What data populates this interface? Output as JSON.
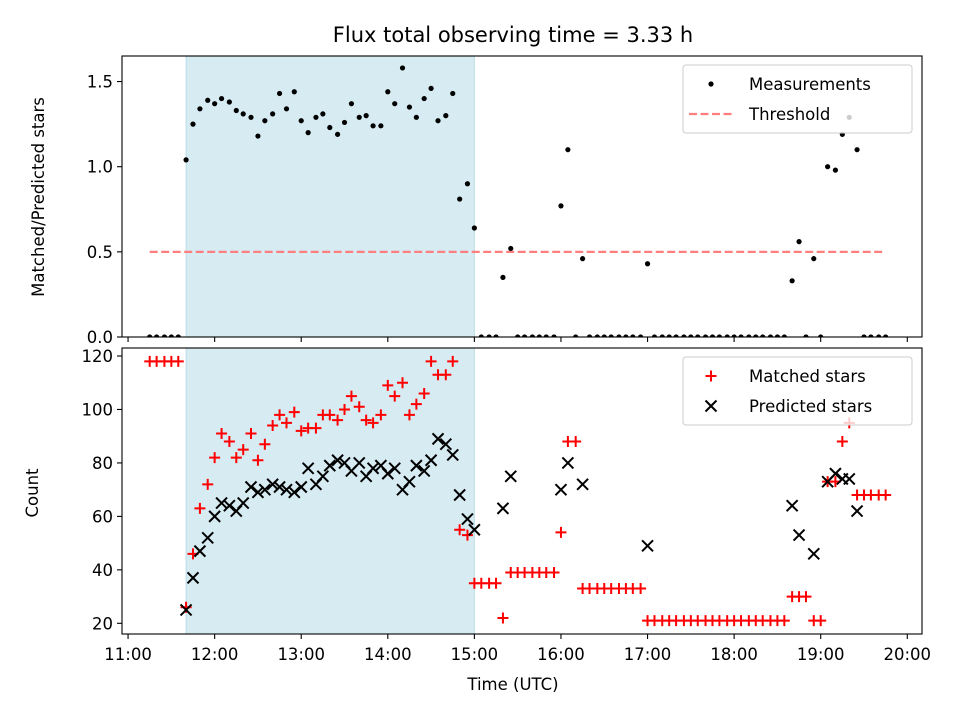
{
  "title": "Flux total observing time = 3.33 h",
  "colors": {
    "highlight": "#add8e6",
    "threshold": "#ff7f7f",
    "measurements": "#000000",
    "matched": "#ff0000",
    "predicted": "#000000"
  },
  "chart_data": [
    {
      "type": "scatter",
      "ylabel": "Matched/Predicted stars",
      "ylim": [
        0,
        1.65
      ],
      "yticks": [
        0.0,
        0.5,
        1.0,
        1.5
      ],
      "ytick_labels": [
        "0.0",
        "0.5",
        "1.0",
        "1.5"
      ],
      "xlim": [
        10.93,
        20.17
      ],
      "highlight_span": [
        11.67,
        15.0
      ],
      "legend": {
        "placement": "top-right",
        "entries": [
          "Measurements",
          "Threshold"
        ]
      },
      "threshold": {
        "name": "Threshold",
        "value": 0.5,
        "x_range": [
          11.25,
          19.75
        ]
      },
      "series": [
        {
          "name": "Measurements",
          "x": [
            11.25,
            11.33,
            11.42,
            11.5,
            11.58,
            11.67,
            11.75,
            11.83,
            11.92,
            12.0,
            12.08,
            12.17,
            12.25,
            12.33,
            12.42,
            12.5,
            12.58,
            12.67,
            12.75,
            12.83,
            12.92,
            13.0,
            13.08,
            13.17,
            13.25,
            13.33,
            13.42,
            13.5,
            13.58,
            13.67,
            13.75,
            13.83,
            13.92,
            14.0,
            14.08,
            14.17,
            14.25,
            14.33,
            14.42,
            14.5,
            14.58,
            14.67,
            14.75,
            14.83,
            14.92,
            15.0,
            15.08,
            15.17,
            15.25,
            15.33,
            15.42,
            15.5,
            15.58,
            15.67,
            15.75,
            15.83,
            15.92,
            16.0,
            16.08,
            16.17,
            16.25,
            16.33,
            16.42,
            16.5,
            16.58,
            16.67,
            16.75,
            16.83,
            16.92,
            17.0,
            17.08,
            17.17,
            17.25,
            17.33,
            17.42,
            17.5,
            17.58,
            17.67,
            17.75,
            17.83,
            17.92,
            18.0,
            18.08,
            18.17,
            18.25,
            18.33,
            18.42,
            18.5,
            18.58,
            18.67,
            18.75,
            18.83,
            18.92,
            19.0,
            19.08,
            19.17,
            19.25,
            19.33,
            19.42,
            19.5,
            19.58,
            19.67,
            19.75
          ],
          "y": [
            0,
            0,
            0,
            0,
            0,
            1.04,
            1.25,
            1.34,
            1.39,
            1.37,
            1.4,
            1.38,
            1.33,
            1.31,
            1.29,
            1.18,
            1.27,
            1.31,
            1.43,
            1.34,
            1.44,
            1.27,
            1.2,
            1.29,
            1.31,
            1.23,
            1.19,
            1.26,
            1.37,
            1.29,
            1.3,
            1.24,
            1.24,
            1.44,
            1.37,
            1.58,
            1.35,
            1.29,
            1.4,
            1.46,
            1.27,
            1.3,
            1.43,
            0.81,
            0.9,
            0.64,
            0,
            0,
            0,
            0.35,
            0.52,
            0,
            0,
            0,
            0,
            0,
            0,
            0.77,
            1.1,
            0,
            0.46,
            0,
            0,
            0,
            0,
            0,
            0,
            0,
            0,
            0.43,
            0,
            0,
            0,
            0,
            0,
            0,
            0,
            0,
            0,
            0,
            0,
            0,
            0,
            0,
            0,
            0,
            0,
            0,
            0,
            0.33,
            0.56,
            0,
            0.46,
            0,
            1.0,
            0.98,
            1.19,
            1.29,
            1.1,
            0,
            0,
            0,
            0
          ]
        }
      ]
    },
    {
      "type": "scatter",
      "xlabel": "Time (UTC)",
      "ylabel": "Count",
      "ylim": [
        16,
        123
      ],
      "yticks": [
        20,
        40,
        60,
        80,
        100,
        120
      ],
      "ytick_labels": [
        "20",
        "40",
        "60",
        "80",
        "100",
        "120"
      ],
      "xlim": [
        10.93,
        20.17
      ],
      "xticks": [
        11,
        12,
        13,
        14,
        15,
        16,
        17,
        18,
        19,
        20
      ],
      "xtick_labels": [
        "11:00",
        "12:00",
        "13:00",
        "14:00",
        "15:00",
        "16:00",
        "17:00",
        "18:00",
        "19:00",
        "20:00"
      ],
      "highlight_span": [
        11.67,
        15.0
      ],
      "legend": {
        "placement": "top-right",
        "entries": [
          "Matched stars",
          "Predicted stars"
        ]
      },
      "series": [
        {
          "name": "Matched stars",
          "marker": "plus",
          "x": [
            11.25,
            11.33,
            11.42,
            11.5,
            11.58,
            11.67,
            11.75,
            11.83,
            11.92,
            12.0,
            12.08,
            12.17,
            12.25,
            12.33,
            12.42,
            12.5,
            12.58,
            12.67,
            12.75,
            12.83,
            12.92,
            13.0,
            13.08,
            13.17,
            13.25,
            13.33,
            13.42,
            13.5,
            13.58,
            13.67,
            13.75,
            13.83,
            13.92,
            14.0,
            14.08,
            14.17,
            14.25,
            14.33,
            14.42,
            14.5,
            14.58,
            14.67,
            14.75,
            14.83,
            14.92,
            15.0,
            15.08,
            15.17,
            15.25,
            15.33,
            15.42,
            15.5,
            15.58,
            15.67,
            15.75,
            15.83,
            15.92,
            16.0,
            16.08,
            16.17,
            16.25,
            16.33,
            16.42,
            16.5,
            16.58,
            16.67,
            16.75,
            16.83,
            16.92,
            17.0,
            17.08,
            17.17,
            17.25,
            17.33,
            17.42,
            17.5,
            17.58,
            17.67,
            17.75,
            17.83,
            17.92,
            18.0,
            18.08,
            18.17,
            18.25,
            18.33,
            18.42,
            18.5,
            18.58,
            18.67,
            18.75,
            18.83,
            18.92,
            19.0,
            19.08,
            19.17,
            19.25,
            19.33,
            19.42,
            19.5,
            19.58,
            19.67,
            19.75
          ],
          "y": [
            118,
            118,
            118,
            118,
            118,
            26,
            46,
            63,
            72,
            82,
            91,
            88,
            82,
            85,
            91,
            81,
            87,
            94,
            98,
            95,
            99,
            92,
            93,
            93,
            98,
            98,
            96,
            100,
            105,
            101,
            96,
            95,
            98,
            109,
            105,
            110,
            98,
            102,
            106,
            118,
            113,
            113,
            118,
            55,
            53,
            35,
            35,
            35,
            35,
            22,
            39,
            39,
            39,
            39,
            39,
            39,
            39,
            54,
            88,
            88,
            33,
            33,
            33,
            33,
            33,
            33,
            33,
            33,
            33,
            21,
            21,
            21,
            21,
            21,
            21,
            21,
            21,
            21,
            21,
            21,
            21,
            21,
            21,
            21,
            21,
            21,
            21,
            21,
            21,
            30,
            30,
            30,
            21,
            21,
            73,
            73,
            88,
            95,
            68,
            68,
            68,
            68,
            68
          ]
        },
        {
          "name": "Predicted stars",
          "marker": "x",
          "x": [
            11.67,
            11.75,
            11.83,
            11.92,
            12.0,
            12.08,
            12.17,
            12.25,
            12.33,
            12.42,
            12.5,
            12.58,
            12.67,
            12.75,
            12.83,
            12.92,
            13.0,
            13.08,
            13.17,
            13.25,
            13.33,
            13.42,
            13.5,
            13.58,
            13.67,
            13.75,
            13.83,
            13.92,
            14.0,
            14.08,
            14.17,
            14.25,
            14.33,
            14.42,
            14.5,
            14.58,
            14.67,
            14.75,
            14.83,
            14.92,
            15.0,
            15.33,
            15.42,
            16.0,
            16.08,
            16.25,
            17.0,
            18.67,
            18.75,
            18.92,
            19.08,
            19.17,
            19.25,
            19.33,
            19.42
          ],
          "y": [
            25,
            37,
            47,
            52,
            60,
            65,
            64,
            62,
            65,
            71,
            69,
            70,
            72,
            71,
            70,
            69,
            71,
            78,
            72,
            75,
            79,
            81,
            80,
            77,
            80,
            75,
            78,
            79,
            76,
            78,
            70,
            73,
            79,
            77,
            81,
            89,
            87,
            83,
            68,
            59,
            55,
            63,
            75,
            70,
            80,
            72,
            49,
            64,
            53,
            46,
            73,
            76,
            74,
            74,
            62
          ]
        }
      ]
    }
  ]
}
